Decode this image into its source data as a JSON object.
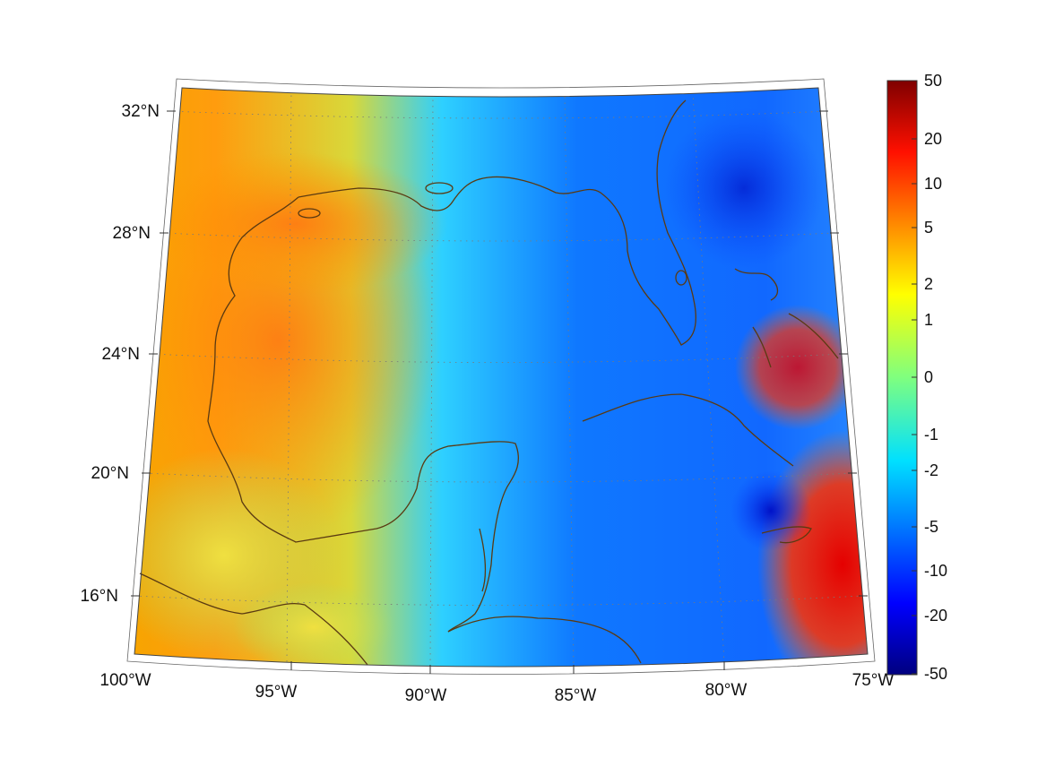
{
  "map": {
    "projection": "conic",
    "lat_labels": [
      "32°N",
      "28°N",
      "24°N",
      "20°N",
      "16°N"
    ],
    "lon_labels": [
      "100°W",
      "95°W",
      "90°W",
      "85°W",
      "80°W",
      "75°W"
    ],
    "coastline_color": "#5a3a12",
    "grid": "dotted"
  },
  "colorbar": {
    "ticks": [
      "50",
      "20",
      "10",
      "5",
      "2",
      "1",
      "0",
      "-1",
      "-2",
      "-5",
      "-10",
      "-20",
      "-50"
    ],
    "colormap": "jet"
  }
}
